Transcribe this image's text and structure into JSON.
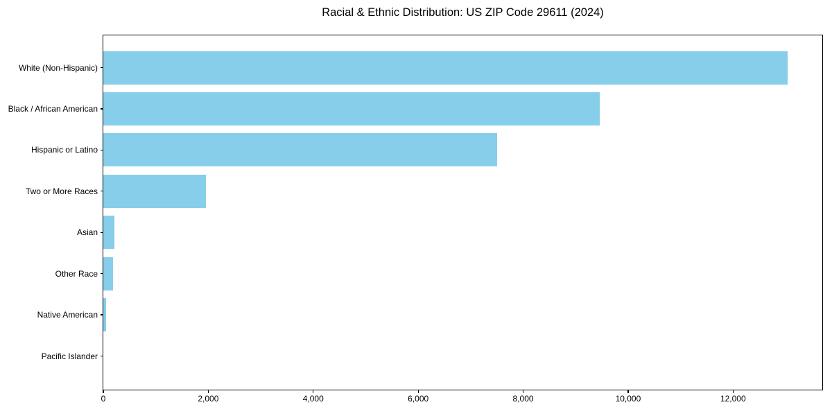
{
  "title": "Racial & Ethnic Distribution: US ZIP Code 29611 (2024)",
  "colors": {
    "bar": "#87CEEB",
    "axis": "#000000",
    "background": "#ffffff",
    "text": "#000000"
  },
  "chart_data": {
    "type": "bar",
    "orientation": "horizontal",
    "title": "Racial & Ethnic Distribution: US ZIP Code 29611 (2024)",
    "xlabel": "",
    "ylabel": "",
    "categories": [
      "White (Non-Hispanic)",
      "Black / African American",
      "Hispanic or Latino",
      "Two or More Races",
      "Asian",
      "Other Race",
      "Native American",
      "Pacific Islander"
    ],
    "values": [
      13040,
      9460,
      7510,
      1950,
      215,
      180,
      55,
      0
    ],
    "xlim": [
      0,
      13700
    ],
    "xticks": [
      0,
      2000,
      4000,
      6000,
      8000,
      10000,
      12000
    ],
    "xtick_labels": [
      "0",
      "2,000",
      "4,000",
      "6,000",
      "8,000",
      "10,000",
      "12,000"
    ],
    "bar_color": "#87CEEB",
    "grid": false,
    "legend": null
  }
}
